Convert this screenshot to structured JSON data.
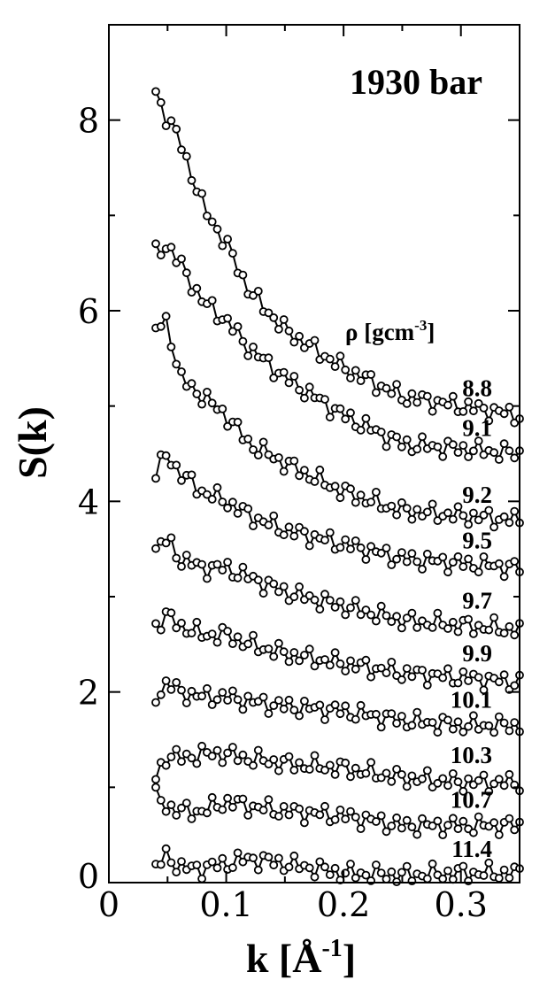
{
  "chart_data": {
    "type": "line",
    "title": "1930 bar",
    "xlabel": "k [Å-1]",
    "xlabel_parts": {
      "text": "k [",
      "unit": "Å",
      "exp": "-1",
      "close": "]"
    },
    "ylabel": "S(k)",
    "xlim": [
      0,
      0.35
    ],
    "ylim": [
      0,
      9
    ],
    "x_ticks": [
      0,
      0.1,
      0.2,
      0.3
    ],
    "x_tick_labels": [
      "0",
      "0.1",
      "0.2",
      "0.3"
    ],
    "y_ticks": [
      0,
      2,
      4,
      6,
      8
    ],
    "y_tick_labels": [
      "0",
      "2",
      "4",
      "6",
      "8"
    ],
    "legend_title": "ρ [gcm-3]",
    "legend_title_parts": {
      "text": "ρ [gcm",
      "exp": "-3",
      "close": "]"
    },
    "marker": "open-circle",
    "line_color": "#000000",
    "grid": false,
    "series": [
      {
        "name": "8.8",
        "x": [
          0.04,
          0.05,
          0.06,
          0.08,
          0.1,
          0.12,
          0.15,
          0.2,
          0.25,
          0.3,
          0.35
        ],
        "y": [
          8.3,
          8.0,
          7.8,
          7.1,
          6.7,
          6.2,
          5.8,
          5.4,
          5.1,
          5.0,
          4.9
        ]
      },
      {
        "name": "9.1",
        "x": [
          0.04,
          0.05,
          0.06,
          0.08,
          0.1,
          0.12,
          0.15,
          0.2,
          0.25,
          0.3,
          0.35
        ],
        "y": [
          6.6,
          6.7,
          6.5,
          6.1,
          5.9,
          5.6,
          5.3,
          4.9,
          4.6,
          4.55,
          4.5
        ]
      },
      {
        "name": "9.2",
        "x": [
          0.04,
          0.05,
          0.06,
          0.08,
          0.1,
          0.12,
          0.15,
          0.2,
          0.25,
          0.3,
          0.35
        ],
        "y": [
          5.8,
          5.9,
          5.3,
          5.1,
          4.9,
          4.6,
          4.4,
          4.1,
          3.9,
          3.85,
          3.8
        ]
      },
      {
        "name": "9.5",
        "x": [
          0.04,
          0.05,
          0.06,
          0.08,
          0.1,
          0.12,
          0.15,
          0.2,
          0.25,
          0.3,
          0.35
        ],
        "y": [
          4.3,
          4.5,
          4.3,
          4.1,
          4.0,
          3.85,
          3.7,
          3.55,
          3.4,
          3.35,
          3.3
        ]
      },
      {
        "name": "9.7",
        "x": [
          0.04,
          0.05,
          0.06,
          0.08,
          0.1,
          0.12,
          0.15,
          0.2,
          0.25,
          0.3,
          0.35
        ],
        "y": [
          3.5,
          3.6,
          3.4,
          3.3,
          3.3,
          3.2,
          3.05,
          2.9,
          2.75,
          2.7,
          2.65
        ]
      },
      {
        "name": "9.9",
        "x": [
          0.04,
          0.05,
          0.06,
          0.08,
          0.1,
          0.12,
          0.15,
          0.2,
          0.25,
          0.3,
          0.35
        ],
        "y": [
          2.7,
          2.8,
          2.7,
          2.6,
          2.6,
          2.5,
          2.4,
          2.3,
          2.2,
          2.15,
          2.1
        ]
      },
      {
        "name": "10.1",
        "x": [
          0.04,
          0.05,
          0.06,
          0.08,
          0.1,
          0.12,
          0.15,
          0.2,
          0.25,
          0.3,
          0.35
        ],
        "y": [
          1.95,
          2.1,
          2.0,
          1.95,
          1.95,
          1.9,
          1.85,
          1.8,
          1.7,
          1.65,
          1.65
        ]
      },
      {
        "name": "10.3",
        "x": [
          0.04,
          0.05,
          0.06,
          0.08,
          0.1,
          0.12,
          0.15,
          0.2,
          0.25,
          0.3,
          0.35
        ],
        "y": [
          1.1,
          1.35,
          1.3,
          1.35,
          1.35,
          1.3,
          1.25,
          1.2,
          1.1,
          1.05,
          1.05
        ]
      },
      {
        "name": "10.7",
        "x": [
          0.04,
          0.05,
          0.06,
          0.08,
          0.1,
          0.12,
          0.15,
          0.2,
          0.25,
          0.3,
          0.35
        ],
        "y": [
          0.9,
          0.8,
          0.75,
          0.75,
          0.85,
          0.8,
          0.75,
          0.7,
          0.6,
          0.6,
          0.6
        ]
      },
      {
        "name": "11.4",
        "x": [
          0.04,
          0.05,
          0.06,
          0.08,
          0.1,
          0.12,
          0.15,
          0.2,
          0.25,
          0.3,
          0.35
        ],
        "y": [
          0.15,
          0.3,
          0.15,
          0.15,
          0.2,
          0.25,
          0.2,
          0.1,
          0.08,
          0.1,
          0.1
        ]
      }
    ]
  }
}
